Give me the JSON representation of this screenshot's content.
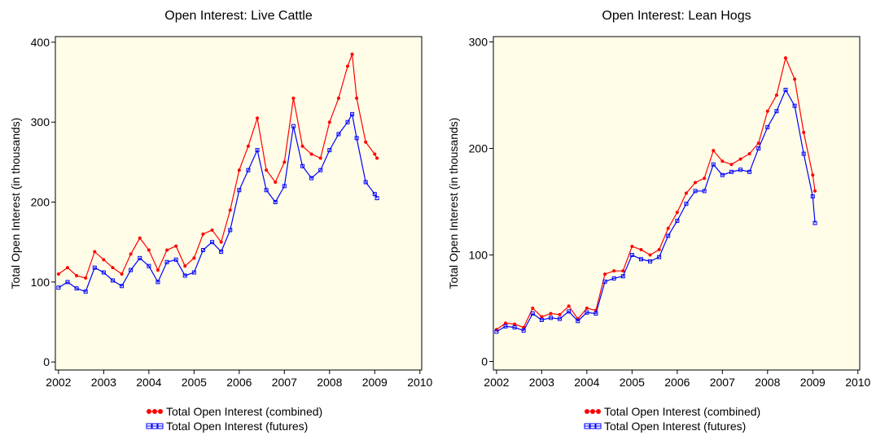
{
  "chart_data": [
    {
      "type": "line",
      "title": "Open Interest: Live Cattle",
      "y_label": "Total Open Interest (in thousands)",
      "x": [
        2002.0,
        2002.2,
        2002.4,
        2002.6,
        2002.8,
        2003.0,
        2003.2,
        2003.4,
        2003.6,
        2003.8,
        2004.0,
        2004.2,
        2004.4,
        2004.6,
        2004.8,
        2005.0,
        2005.2,
        2005.4,
        2005.6,
        2005.8,
        2006.0,
        2006.2,
        2006.4,
        2006.6,
        2006.8,
        2007.0,
        2007.2,
        2007.4,
        2007.6,
        2007.8,
        2008.0,
        2008.2,
        2008.4,
        2008.5,
        2008.6,
        2008.8,
        2009.0,
        2009.05
      ],
      "series": [
        {
          "name": "Total Open Interest (combined)",
          "color": "#ff0000",
          "marker": "circle",
          "values": [
            110,
            118,
            108,
            105,
            138,
            128,
            118,
            110,
            135,
            155,
            140,
            115,
            140,
            145,
            120,
            130,
            160,
            165,
            150,
            190,
            240,
            270,
            305,
            240,
            225,
            250,
            330,
            270,
            260,
            255,
            300,
            330,
            370,
            385,
            330,
            275,
            260,
            255
          ]
        },
        {
          "name": "Total Open Interest (futures)",
          "color": "#0000ff",
          "marker": "square",
          "values": [
            93,
            100,
            92,
            88,
            118,
            112,
            102,
            95,
            115,
            130,
            120,
            100,
            125,
            128,
            108,
            112,
            140,
            150,
            138,
            165,
            215,
            240,
            265,
            215,
            200,
            220,
            295,
            245,
            230,
            240,
            265,
            285,
            300,
            310,
            280,
            225,
            210,
            205
          ]
        }
      ],
      "xlim": [
        2001.93,
        2010.04
      ],
      "xticks": [
        2002,
        2003,
        2004,
        2005,
        2006,
        2007,
        2008,
        2009,
        2010
      ],
      "ylim": [
        -10,
        407
      ],
      "yticks": [
        0,
        100,
        200,
        300,
        400
      ]
    },
    {
      "type": "line",
      "title": "Open Interest: Lean Hogs",
      "y_label": "Total Open Interest (in thousands)",
      "x": [
        2002.0,
        2002.2,
        2002.4,
        2002.6,
        2002.8,
        2003.0,
        2003.2,
        2003.4,
        2003.6,
        2003.8,
        2004.0,
        2004.2,
        2004.4,
        2004.6,
        2004.8,
        2005.0,
        2005.2,
        2005.4,
        2005.6,
        2005.8,
        2006.0,
        2006.2,
        2006.4,
        2006.6,
        2006.8,
        2007.0,
        2007.2,
        2007.4,
        2007.6,
        2007.8,
        2008.0,
        2008.2,
        2008.4,
        2008.6,
        2008.8,
        2009.0,
        2009.05
      ],
      "series": [
        {
          "name": "Total Open Interest (combined)",
          "color": "#ff0000",
          "marker": "circle",
          "values": [
            30,
            36,
            35,
            32,
            50,
            42,
            45,
            44,
            52,
            40,
            50,
            48,
            82,
            85,
            85,
            108,
            105,
            100,
            105,
            125,
            140,
            158,
            168,
            172,
            198,
            188,
            185,
            190,
            195,
            205,
            235,
            250,
            285,
            265,
            215,
            175,
            160
          ]
        },
        {
          "name": "Total Open Interest (futures)",
          "color": "#0000ff",
          "marker": "square",
          "values": [
            28,
            33,
            32,
            29,
            45,
            39,
            41,
            40,
            47,
            38,
            46,
            45,
            75,
            78,
            80,
            100,
            96,
            94,
            98,
            118,
            132,
            148,
            160,
            160,
            185,
            175,
            178,
            180,
            178,
            200,
            220,
            235,
            255,
            240,
            195,
            155,
            130
          ]
        }
      ],
      "xlim": [
        2001.93,
        2010.04
      ],
      "xticks": [
        2002,
        2003,
        2004,
        2005,
        2006,
        2007,
        2008,
        2009,
        2010
      ],
      "ylim": [
        -8,
        305
      ],
      "yticks": [
        0,
        100,
        200,
        300
      ]
    }
  ]
}
